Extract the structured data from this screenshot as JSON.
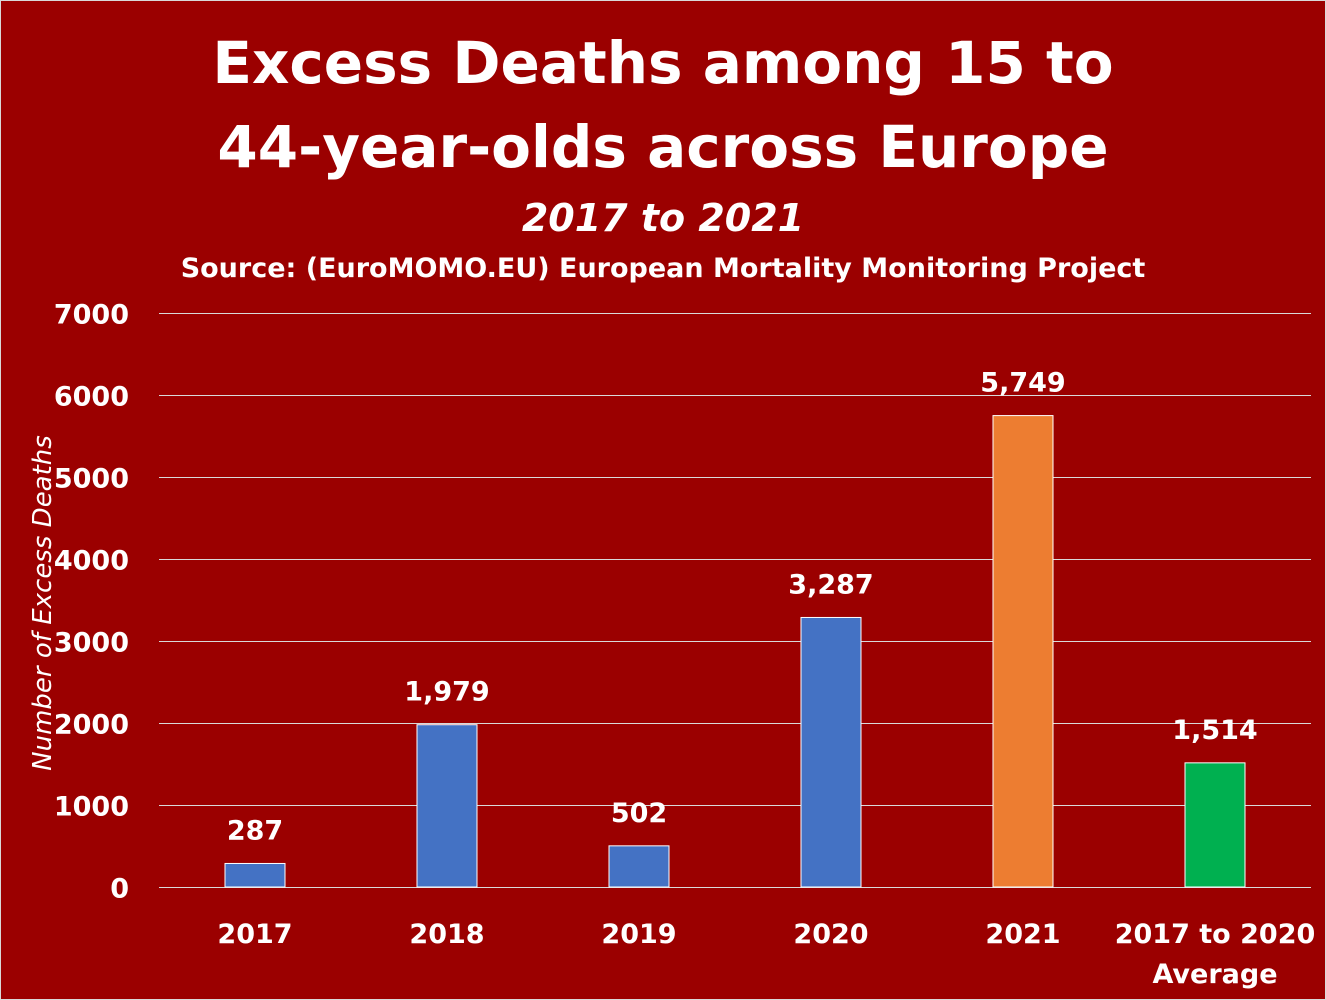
{
  "chart_data": {
    "type": "bar",
    "title_line1": "Excess Deaths among 15 to",
    "title_line2": "44-year-olds across Europe",
    "subtitle": "2017 to 2021",
    "source": "Source: (EuroMOMO.EU) European Mortality Monitoring Project",
    "ylabel": "Number of Excess Deaths",
    "xlabel": "",
    "ylim": [
      0,
      7000
    ],
    "yticks": [
      0,
      1000,
      2000,
      3000,
      4000,
      5000,
      6000,
      7000
    ],
    "ytick_labels": [
      "0",
      "1000",
      "2000",
      "3000",
      "4000",
      "5000",
      "6000",
      "7000"
    ],
    "grid": true,
    "legend": "none",
    "categories": [
      [
        "2017"
      ],
      [
        "2018"
      ],
      [
        "2019"
      ],
      [
        "2020"
      ],
      [
        "2021"
      ],
      [
        "2017 to 2020",
        "Average"
      ]
    ],
    "values": [
      287,
      1979,
      502,
      3287,
      5749,
      1514
    ],
    "value_labels": [
      "287",
      "1,979",
      "502",
      "3,287",
      "5,749",
      "1,514"
    ],
    "bar_colors": [
      "#4472c4",
      "#4472c4",
      "#4472c4",
      "#4472c4",
      "#ed7d31",
      "#00b050"
    ]
  },
  "colors": {
    "background": "#9b0000",
    "gridline": "#d9d9d9",
    "text": "#ffffff"
  }
}
